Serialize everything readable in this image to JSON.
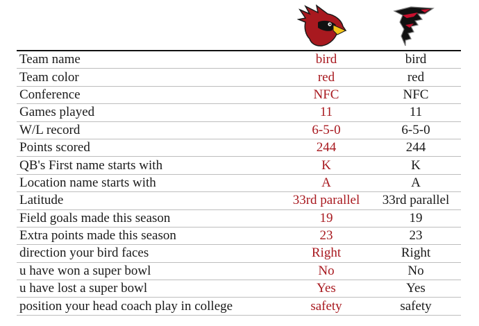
{
  "header": {
    "team_a_logo": "cardinal-head-icon",
    "team_b_logo": "falcon-icon"
  },
  "colors": {
    "team_a_text": "#a8191f",
    "team_b_text": "#1a1a1a"
  },
  "rows": [
    {
      "label": "Team name",
      "team_a": "bird",
      "team_b": "bird"
    },
    {
      "label": "Team color",
      "team_a": "red",
      "team_b": "red"
    },
    {
      "label": "Conference",
      "team_a": "NFC",
      "team_b": "NFC"
    },
    {
      "label": "Games played",
      "team_a": "11",
      "team_b": "11"
    },
    {
      "label": "W/L record",
      "team_a": "6-5-0",
      "team_b": "6-5-0"
    },
    {
      "label": "Points scored",
      "team_a": "244",
      "team_b": "244"
    },
    {
      "label": "QB's First name starts with",
      "team_a": "K",
      "team_b": "K"
    },
    {
      "label": "Location name starts with",
      "team_a": "A",
      "team_b": "A"
    },
    {
      "label": "Latitude",
      "team_a": "33rd parallel",
      "team_b": "33rd parallel"
    },
    {
      "label": "Field goals made this season",
      "team_a": "19",
      "team_b": "19"
    },
    {
      "label": "Extra points made this season",
      "team_a": "23",
      "team_b": "23"
    },
    {
      "label": "direction your bird faces",
      "team_a": "Right",
      "team_b": "Right"
    },
    {
      "label": "u have won a super bowl",
      "team_a": "No",
      "team_b": "No"
    },
    {
      "label": "u have lost a super bowl",
      "team_a": "Yes",
      "team_b": "Yes"
    },
    {
      "label": "position your head coach play in college",
      "team_a": "safety",
      "team_b": "safety"
    }
  ]
}
